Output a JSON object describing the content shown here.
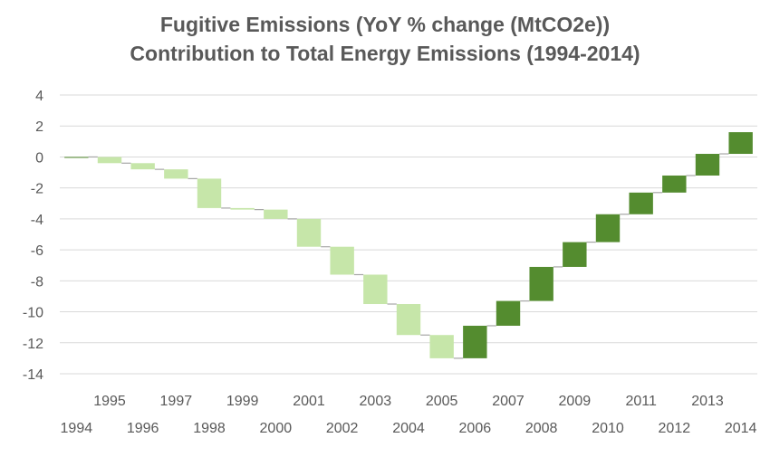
{
  "chart_data": {
    "type": "waterfall",
    "title": "Fugitive Emissions (YoY % change (MtCO2e))",
    "subtitle": "Contribution to Total Energy Emissions (1994-2014)",
    "categories": [
      "1994",
      "1995",
      "1996",
      "1997",
      "1998",
      "1999",
      "2000",
      "2001",
      "2002",
      "2003",
      "2004",
      "2005",
      "2006",
      "2007",
      "2008",
      "2009",
      "2010",
      "2011",
      "2012",
      "2013",
      "2014"
    ],
    "series": [
      {
        "values": [
          0,
          -0.4,
          -0.4,
          -0.6,
          -1.9,
          -0.1,
          -0.6,
          -1.8,
          -1.8,
          -1.9,
          -2.0,
          -1.5,
          2.1,
          1.6,
          2.2,
          1.6,
          1.8,
          1.4,
          1.1,
          1.4,
          1.4
        ]
      }
    ],
    "colors": {
      "decrease": "#c6e6a9",
      "increase": "#548c2f",
      "connector": "#a6a6a6",
      "grid": "#d9d9d9"
    },
    "ylim": [
      -14,
      4
    ],
    "yticks": [
      4,
      2,
      0,
      -2,
      -4,
      -6,
      -8,
      -10,
      -12,
      -14
    ],
    "grid": true,
    "legend": "none"
  }
}
